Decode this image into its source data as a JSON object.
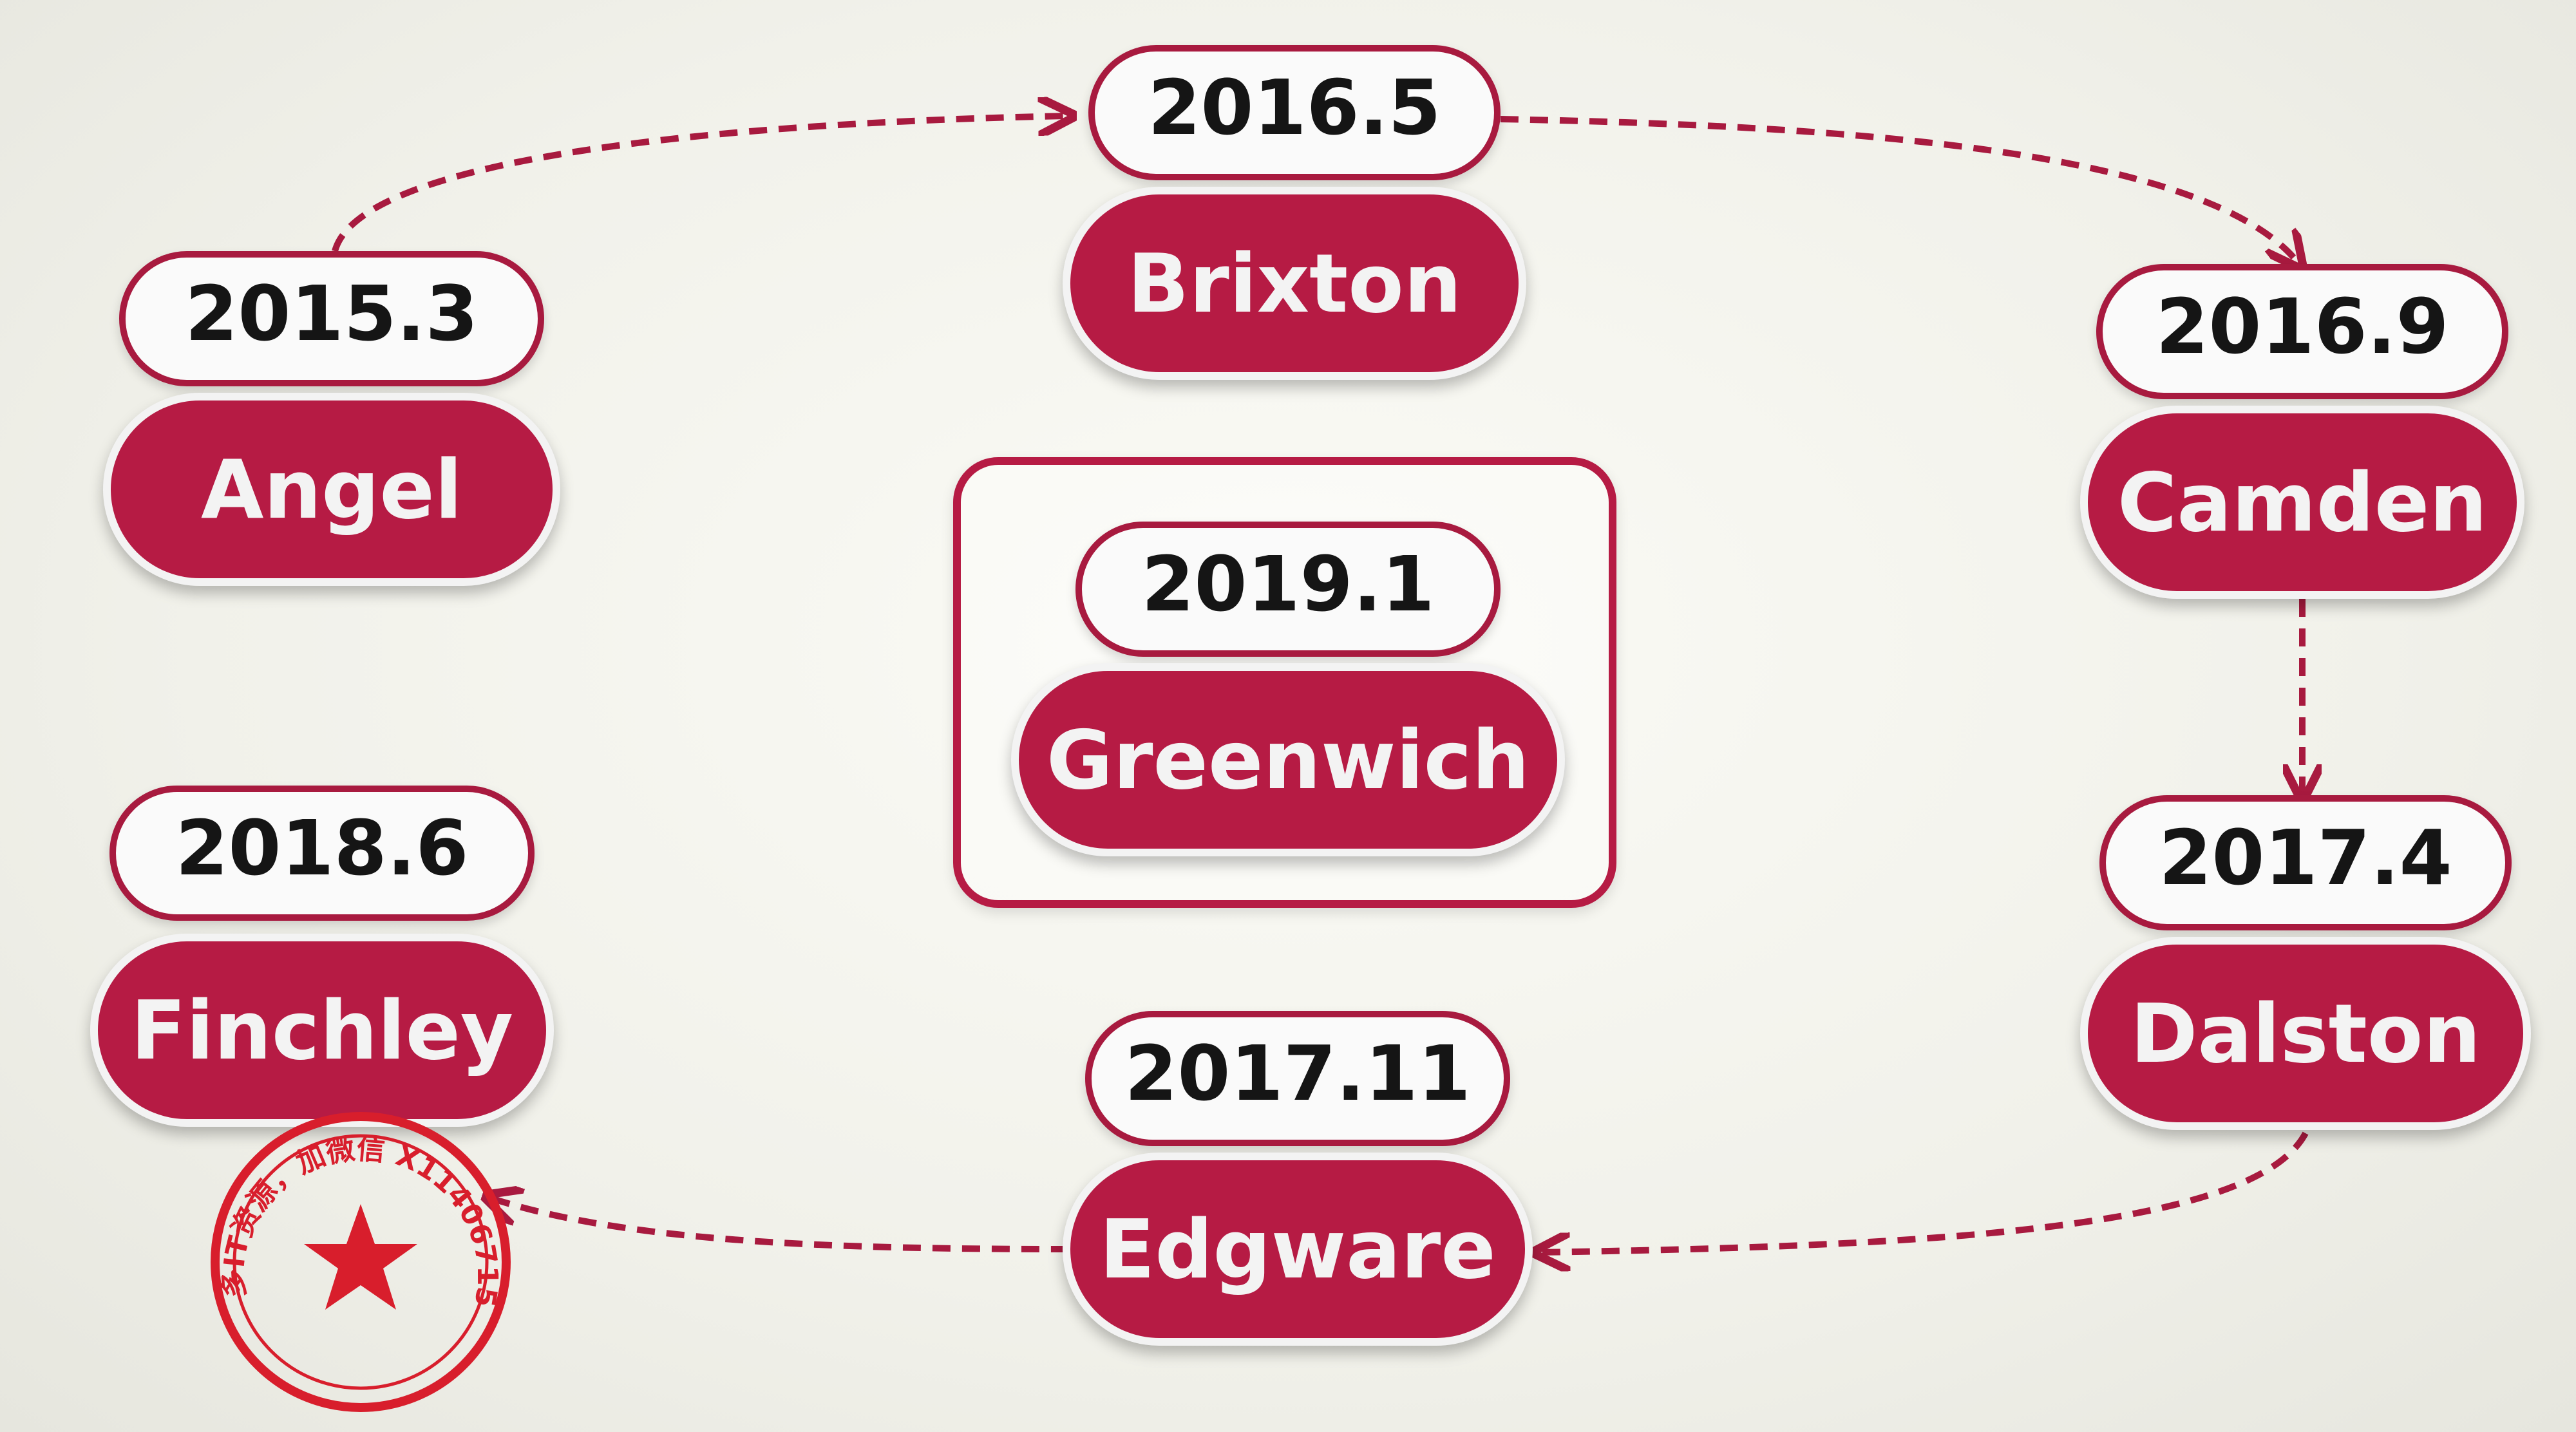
{
  "colors": {
    "accent": "#b61b44",
    "tab_border": "#a81a3f",
    "text_dark": "#151515",
    "text_light": "#f3f3f3"
  },
  "nodes": {
    "angel": {
      "date": "2015.3",
      "name": "Angel"
    },
    "brixton": {
      "date": "2016.5",
      "name": "Brixton"
    },
    "camden": {
      "date": "2016.9",
      "name": "Camden"
    },
    "dalston": {
      "date": "2017.4",
      "name": "Dalston"
    },
    "edgware": {
      "date": "2017.11",
      "name": "Edgware"
    },
    "finchley": {
      "date": "2018.6",
      "name": "Finchley"
    },
    "greenwich": {
      "date": "2019.1",
      "name": "Greenwich"
    }
  },
  "stamp": {
    "text": "更多IT资源，加微信 X114067152",
    "icon": "star-icon"
  }
}
